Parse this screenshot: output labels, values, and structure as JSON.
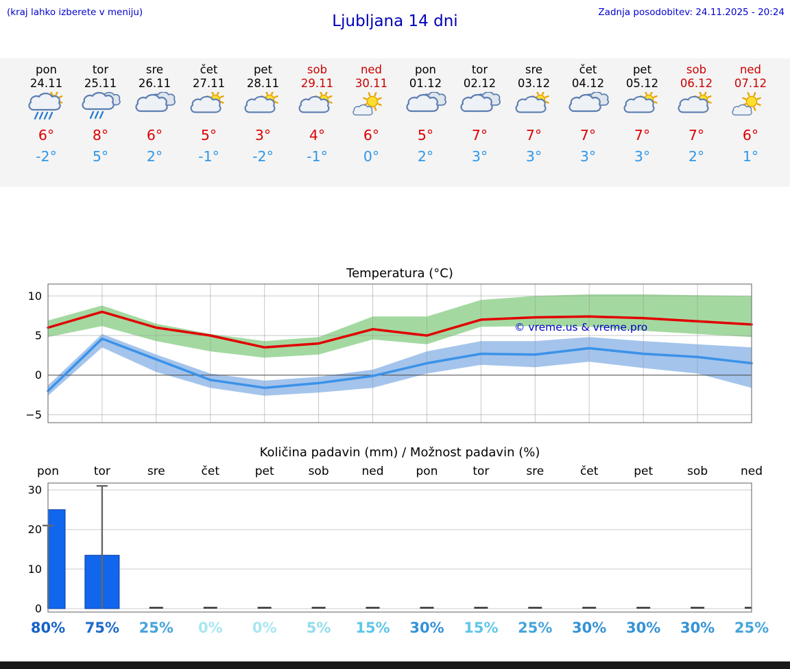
{
  "header": {
    "hint": "(kraj lahko izberete v meniju)",
    "title": "Ljubljana 14 dni",
    "last_update": "Zadnja posodobitev: 24.11.2025 - 20:24"
  },
  "colors": {
    "link_blue": "#0000cc",
    "max_temp_red": "#dd0000",
    "min_temp_blue": "#2f97e8",
    "weekend_red": "#cc0000",
    "strip_background": "#f4f4f4"
  },
  "forecast_days": [
    {
      "day": "pon",
      "date": "24.11",
      "weekend": false,
      "icon": "sun-cloud-rain",
      "tmax": "6°",
      "tmin": "-2°"
    },
    {
      "day": "tor",
      "date": "25.11",
      "weekend": false,
      "icon": "cloud-rain",
      "tmax": "8°",
      "tmin": "5°"
    },
    {
      "day": "sre",
      "date": "26.11",
      "weekend": false,
      "icon": "cloudy",
      "tmax": "6°",
      "tmin": "2°"
    },
    {
      "day": "čet",
      "date": "27.11",
      "weekend": false,
      "icon": "sun-cloud",
      "tmax": "5°",
      "tmin": "-1°"
    },
    {
      "day": "pet",
      "date": "28.11",
      "weekend": false,
      "icon": "sun-cloud",
      "tmax": "3°",
      "tmin": "-2°"
    },
    {
      "day": "sob",
      "date": "29.11",
      "weekend": true,
      "icon": "sun-cloud",
      "tmax": "4°",
      "tmin": "-1°"
    },
    {
      "day": "ned",
      "date": "30.11",
      "weekend": true,
      "icon": "sun-small-cloud",
      "tmax": "6°",
      "tmin": "0°"
    },
    {
      "day": "pon",
      "date": "01.12",
      "weekend": false,
      "icon": "cloudy",
      "tmax": "5°",
      "tmin": "2°"
    },
    {
      "day": "tor",
      "date": "02.12",
      "weekend": false,
      "icon": "cloudy",
      "tmax": "7°",
      "tmin": "3°"
    },
    {
      "day": "sre",
      "date": "03.12",
      "weekend": false,
      "icon": "sun-cloud",
      "tmax": "7°",
      "tmin": "3°"
    },
    {
      "day": "čet",
      "date": "04.12",
      "weekend": false,
      "icon": "cloudy",
      "tmax": "7°",
      "tmin": "3°"
    },
    {
      "day": "pet",
      "date": "05.12",
      "weekend": false,
      "icon": "sun-cloud",
      "tmax": "7°",
      "tmin": "3°"
    },
    {
      "day": "sob",
      "date": "06.12",
      "weekend": true,
      "icon": "sun-cloud",
      "tmax": "7°",
      "tmin": "2°"
    },
    {
      "day": "ned",
      "date": "07.12",
      "weekend": true,
      "icon": "sun-small-cloud",
      "tmax": "6°",
      "tmin": "1°"
    }
  ],
  "chart_data": [
    {
      "type": "line",
      "title": "Temperatura (°C)",
      "x": [
        "pon 24.11",
        "tor 25.11",
        "sre 26.11",
        "čet 27.11",
        "pet 28.11",
        "sob 29.11",
        "ned 30.11",
        "pon 01.12",
        "tor 02.12",
        "sre 03.12",
        "čet 04.12",
        "pet 05.12",
        "sob 06.12",
        "ned 07.12"
      ],
      "ylim": [
        -6,
        11.5
      ],
      "yticks": [
        -5,
        0,
        5,
        10
      ],
      "grid": true,
      "watermark": "© vreme.us & vreme.pro",
      "series": [
        {
          "name": "max-temp",
          "color": "#e00000",
          "values": [
            6,
            8,
            6,
            5,
            3.5,
            4,
            5.8,
            5,
            7,
            7.3,
            7.4,
            7.2,
            6.8,
            6.4
          ]
        },
        {
          "name": "min-temp",
          "color": "#3b92e8",
          "values": [
            -2,
            4.6,
            2,
            -0.6,
            -1.6,
            -1,
            -0.1,
            1.5,
            2.7,
            2.6,
            3.4,
            2.7,
            2.3,
            1.5
          ]
        }
      ],
      "bands": [
        {
          "name": "max-temp-range",
          "color": "#a3d9a0",
          "upper": [
            6.9,
            8.8,
            6.5,
            5.2,
            4.3,
            4.8,
            7.4,
            7.4,
            9.5,
            10,
            10.2,
            10.2,
            10.1,
            10
          ],
          "lower": [
            4.8,
            6.2,
            4.3,
            3.0,
            2.2,
            2.6,
            4.5,
            3.9,
            6.1,
            6.2,
            6.1,
            5.6,
            5.2,
            4.8
          ]
        },
        {
          "name": "min-temp-range",
          "color": "#a4c4ec",
          "upper": [
            -1.3,
            5.2,
            2.6,
            0.2,
            -0.7,
            -0.2,
            0.7,
            3.0,
            4.3,
            4.3,
            4.8,
            4.3,
            3.9,
            3.5
          ],
          "lower": [
            -2.6,
            3.5,
            0.4,
            -1.6,
            -2.6,
            -2.2,
            -1.6,
            0.2,
            1.3,
            1.0,
            1.7,
            0.9,
            0.2,
            -1.6
          ]
        }
      ]
    },
    {
      "type": "bar",
      "title": "Količina padavin (mm) / Možnost padavin (%)",
      "categories": [
        "pon",
        "tor",
        "sre",
        "čet",
        "pet",
        "sob",
        "ned",
        "pon",
        "tor",
        "sre",
        "čet",
        "pet",
        "sob",
        "ned"
      ],
      "values": [
        25,
        13.5,
        0.2,
        0.2,
        0.2,
        0.2,
        0.2,
        0.2,
        0.2,
        0.2,
        0.2,
        0.2,
        0.2,
        0.2
      ],
      "whiskers": [
        21,
        31,
        null,
        null,
        null,
        null,
        null,
        null,
        null,
        null,
        null,
        null,
        null,
        null
      ],
      "ylim": [
        0,
        32
      ],
      "yticks": [
        0,
        10,
        20,
        30
      ],
      "bar_color": "#1166ee",
      "probabilities": [
        {
          "label": "80%",
          "color": "#1560c8"
        },
        {
          "label": "75%",
          "color": "#1c6aca"
        },
        {
          "label": "25%",
          "color": "#46a4da"
        },
        {
          "label": "0%",
          "color": "#a9e6f0"
        },
        {
          "label": "0%",
          "color": "#a9e6f0"
        },
        {
          "label": "5%",
          "color": "#93ddec"
        },
        {
          "label": "15%",
          "color": "#5ec6e6"
        },
        {
          "label": "30%",
          "color": "#3492d6"
        },
        {
          "label": "15%",
          "color": "#5ec6e6"
        },
        {
          "label": "25%",
          "color": "#46a4da"
        },
        {
          "label": "30%",
          "color": "#3492d6"
        },
        {
          "label": "30%",
          "color": "#3492d6"
        },
        {
          "label": "30%",
          "color": "#3492d6"
        },
        {
          "label": "25%",
          "color": "#46a4da"
        }
      ]
    }
  ]
}
